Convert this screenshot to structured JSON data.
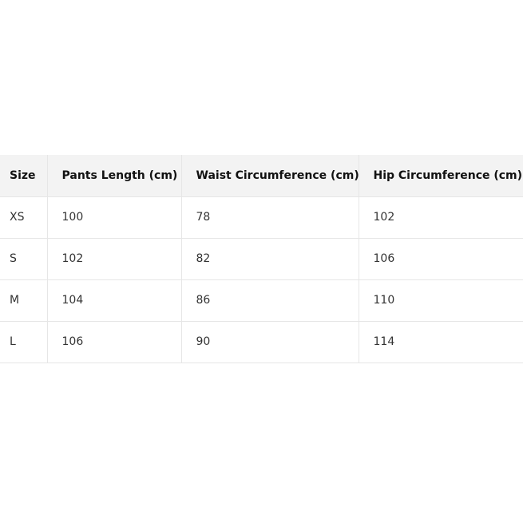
{
  "table": {
    "headers": [
      "Size",
      "Pants Length (cm)",
      "Waist Circumference (cm)",
      "Hip Circumference (cm)"
    ],
    "rows": [
      [
        "XS",
        "100",
        "78",
        "102"
      ],
      [
        "S",
        "102",
        "82",
        "106"
      ],
      [
        "M",
        "104",
        "86",
        "110"
      ],
      [
        "L",
        "106",
        "90",
        "114"
      ]
    ]
  }
}
